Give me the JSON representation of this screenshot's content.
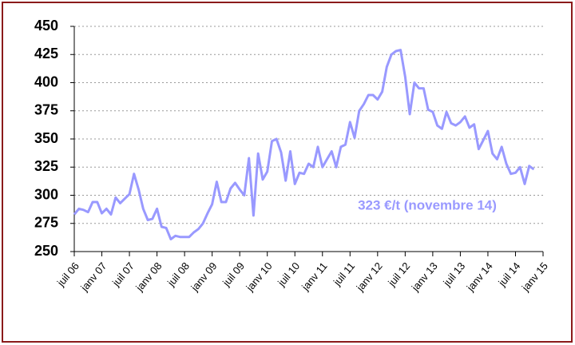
{
  "chart_data": {
    "type": "line",
    "annotation": "323 €/t (novembre 14)",
    "x": [
      "2006-07",
      "2006-08",
      "2006-09",
      "2006-10",
      "2006-11",
      "2006-12",
      "2007-01",
      "2007-02",
      "2007-03",
      "2007-04",
      "2007-05",
      "2007-06",
      "2007-07",
      "2007-08",
      "2007-09",
      "2007-10",
      "2007-11",
      "2007-12",
      "2008-01",
      "2008-02",
      "2008-03",
      "2008-04",
      "2008-05",
      "2008-06",
      "2008-07",
      "2008-08",
      "2008-09",
      "2008-10",
      "2008-11",
      "2008-12",
      "2009-01",
      "2009-02",
      "2009-03",
      "2009-04",
      "2009-05",
      "2009-06",
      "2009-07",
      "2009-08",
      "2009-09",
      "2009-10",
      "2009-11",
      "2009-12",
      "2010-01",
      "2010-02",
      "2010-03",
      "2010-04",
      "2010-05",
      "2010-06",
      "2010-07",
      "2010-08",
      "2010-09",
      "2010-10",
      "2010-11",
      "2010-12",
      "2011-01",
      "2011-02",
      "2011-03",
      "2011-04",
      "2011-05",
      "2011-06",
      "2011-07",
      "2011-08",
      "2011-09",
      "2011-10",
      "2011-11",
      "2011-12",
      "2012-01",
      "2012-02",
      "2012-03",
      "2012-04",
      "2012-05",
      "2012-06",
      "2012-07",
      "2012-08",
      "2012-09",
      "2012-10",
      "2012-11",
      "2012-12",
      "2013-01",
      "2013-02",
      "2013-03",
      "2013-04",
      "2013-05",
      "2013-06",
      "2013-07",
      "2013-08",
      "2013-09",
      "2013-10",
      "2013-11",
      "2013-12",
      "2014-01",
      "2014-02",
      "2014-03",
      "2014-04",
      "2014-05",
      "2014-06",
      "2014-07",
      "2014-08",
      "2014-09",
      "2014-10",
      "2014-11"
    ],
    "series": [
      {
        "color": "#9999ff",
        "values": [
          283,
          288,
          287,
          285,
          294,
          294,
          284,
          288,
          283,
          298,
          293,
          297,
          301,
          319,
          305,
          288,
          278,
          279,
          288,
          272,
          271,
          261,
          264,
          263,
          263,
          263,
          267,
          270,
          275,
          284,
          292,
          312,
          294,
          294,
          306,
          311,
          305,
          300,
          333,
          282,
          337,
          314,
          321,
          348,
          350,
          338,
          313,
          339,
          310,
          320,
          319,
          328,
          325,
          343,
          325,
          332,
          339,
          325,
          343,
          345,
          365,
          351,
          375,
          381,
          389,
          389,
          385,
          392,
          414,
          425,
          428,
          429,
          405,
          372,
          400,
          395,
          395,
          376,
          374,
          362,
          359,
          374,
          364,
          362,
          365,
          370,
          360,
          363,
          341,
          349,
          357,
          337,
          332,
          343,
          328,
          319,
          320,
          325,
          310,
          326,
          323
        ]
      }
    ],
    "xlim": [
      "2006-07",
      "2015-01"
    ],
    "xticks": [
      {
        "value": "2006-07",
        "label": "juil 06"
      },
      {
        "value": "2007-01",
        "label": "janv 07"
      },
      {
        "value": "2007-07",
        "label": "juil 07"
      },
      {
        "value": "2008-01",
        "label": "janv 08"
      },
      {
        "value": "2008-07",
        "label": "juil 08"
      },
      {
        "value": "2009-01",
        "label": "janv 09"
      },
      {
        "value": "2009-07",
        "label": "juil 09"
      },
      {
        "value": "2010-01",
        "label": "janv 10"
      },
      {
        "value": "2010-07",
        "label": "juil 10"
      },
      {
        "value": "2011-01",
        "label": "janv 11"
      },
      {
        "value": "2011-07",
        "label": "juil 11"
      },
      {
        "value": "2012-01",
        "label": "janv 12"
      },
      {
        "value": "2012-07",
        "label": "juil 12"
      },
      {
        "value": "2013-01",
        "label": "janv 13"
      },
      {
        "value": "2013-07",
        "label": "juil 13"
      },
      {
        "value": "2014-01",
        "label": "janv 14"
      },
      {
        "value": "2014-07",
        "label": "juil 14"
      },
      {
        "value": "2015-01",
        "label": "janv 15"
      }
    ],
    "ylim": [
      250,
      450
    ],
    "yticks": [
      250,
      275,
      300,
      325,
      350,
      375,
      400,
      425,
      450
    ],
    "grid": true
  }
}
